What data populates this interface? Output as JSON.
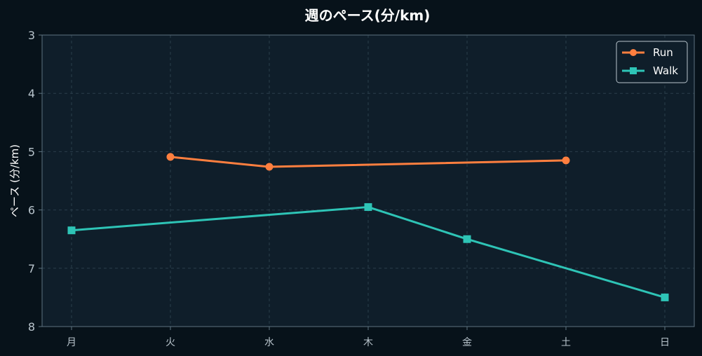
{
  "chart_data": {
    "type": "line",
    "title": "週のペース(分/km)",
    "xlabel": "",
    "ylabel": "ペース (分/km)",
    "categories": [
      "月",
      "火",
      "水",
      "木",
      "金",
      "土",
      "日"
    ],
    "ylim": [
      3,
      8
    ],
    "y_inverted": true,
    "yticks": [
      3,
      4,
      5,
      6,
      7,
      8
    ],
    "grid": true,
    "legend_position": "top-right",
    "series": [
      {
        "name": "Run",
        "color": "#ff7f3f",
        "marker": "circle",
        "values": [
          null,
          5.09,
          5.26,
          null,
          null,
          5.15,
          null
        ]
      },
      {
        "name": "Walk",
        "color": "#2ec4b6",
        "marker": "square",
        "values": [
          6.35,
          null,
          null,
          5.95,
          6.5,
          null,
          7.5
        ]
      }
    ]
  },
  "colors": {
    "background": "#07121a",
    "plot_background": "#0f1e2a",
    "grid": "#2a3d4a",
    "axis": "#5d7380"
  }
}
